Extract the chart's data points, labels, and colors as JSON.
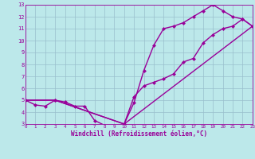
{
  "xlabel": "Windchill (Refroidissement éolien,°C)",
  "xlim": [
    0,
    23
  ],
  "ylim": [
    3,
    13
  ],
  "xticks": [
    0,
    1,
    2,
    3,
    4,
    5,
    6,
    7,
    8,
    9,
    10,
    11,
    12,
    13,
    14,
    15,
    16,
    17,
    18,
    19,
    20,
    21,
    22,
    23
  ],
  "yticks": [
    3,
    4,
    5,
    6,
    7,
    8,
    9,
    10,
    11,
    12,
    13
  ],
  "background_color": "#bce8ea",
  "line_color": "#990099",
  "grid_color": "#99bfcc",
  "line1_x": [
    0,
    1,
    2,
    3,
    4,
    5,
    6,
    7,
    8,
    9,
    10,
    11,
    12,
    13,
    14,
    15,
    16,
    17,
    18,
    19,
    20,
    21,
    22,
    23
  ],
  "line1_y": [
    5.0,
    4.6,
    4.5,
    5.0,
    4.85,
    4.5,
    4.5,
    3.3,
    2.9,
    2.75,
    3.0,
    4.8,
    7.5,
    9.6,
    11.0,
    11.2,
    11.5,
    12.0,
    12.5,
    13.0,
    12.5,
    12.0,
    11.8,
    11.2
  ],
  "line2_x": [
    0,
    3,
    10,
    11,
    12,
    13,
    14,
    15,
    16,
    17,
    18,
    19,
    20,
    21,
    22,
    23
  ],
  "line2_y": [
    5.0,
    5.0,
    3.0,
    5.3,
    6.2,
    6.5,
    6.8,
    7.2,
    8.2,
    8.5,
    9.8,
    10.5,
    11.0,
    11.2,
    11.8,
    11.2
  ],
  "line3_x": [
    0,
    3,
    10,
    23
  ],
  "line3_y": [
    5.0,
    5.0,
    3.0,
    11.2
  ],
  "markersize": 2.5,
  "linewidth": 1.0
}
